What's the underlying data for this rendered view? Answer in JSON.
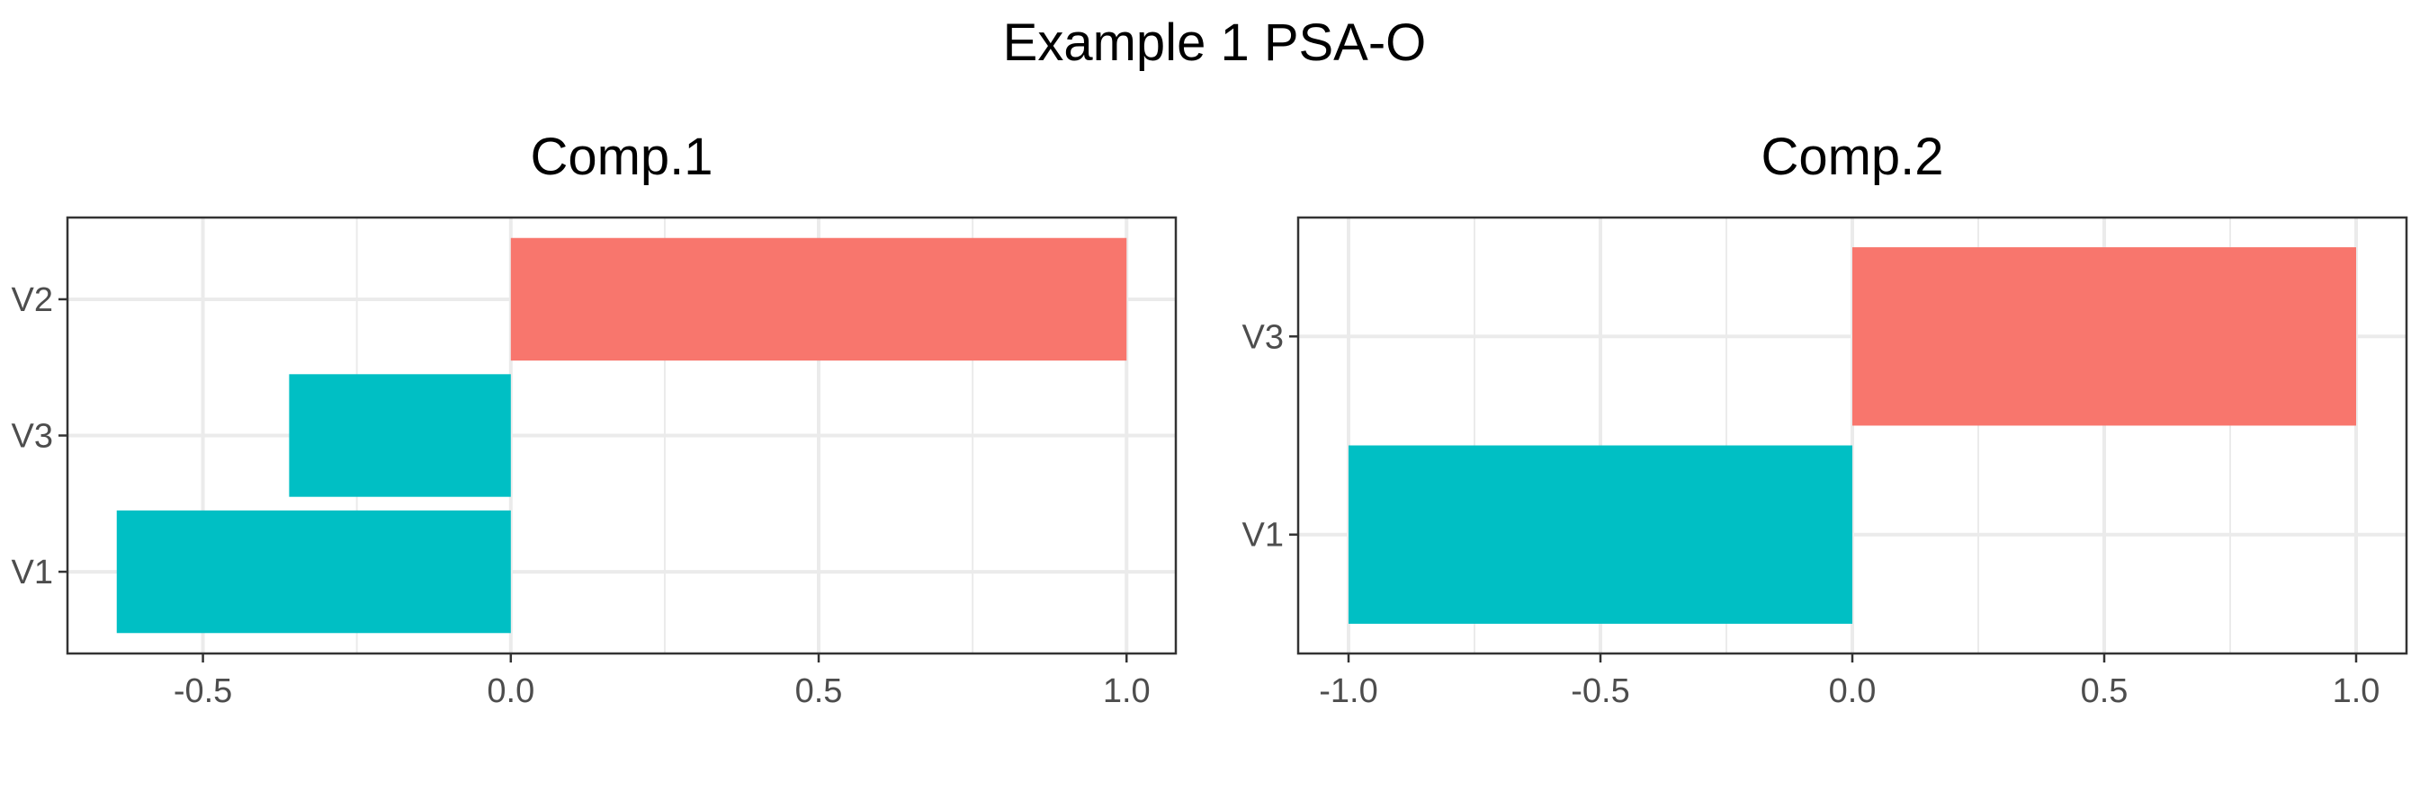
{
  "title": "Example 1 PSA-O",
  "colors": {
    "positive": "#F8766D",
    "negative": "#00BFC4",
    "grid": "#ebebeb",
    "border": "#333333"
  },
  "chart_data": [
    {
      "type": "bar",
      "orientation": "horizontal",
      "title": "Comp.1",
      "categories": [
        "V1",
        "V3",
        "V2"
      ],
      "values": [
        -0.64,
        -0.36,
        1.0
      ],
      "xlim": [
        -0.72,
        1.08
      ],
      "xticks": [
        -0.5,
        0.0,
        0.5,
        1.0
      ],
      "xtick_labels": [
        "-0.5",
        "0.0",
        "0.5",
        "1.0"
      ],
      "grid": true,
      "legend": "none"
    },
    {
      "type": "bar",
      "orientation": "horizontal",
      "title": "Comp.2",
      "categories": [
        "V1",
        "V3"
      ],
      "values": [
        -1.0,
        1.0
      ],
      "xlim": [
        -1.1,
        1.1
      ],
      "xticks": [
        -1.0,
        -0.5,
        0.0,
        0.5,
        1.0
      ],
      "xtick_labels": [
        "-1.0",
        "-0.5",
        "0.0",
        "0.5",
        "1.0"
      ],
      "grid": true,
      "legend": "none"
    }
  ]
}
